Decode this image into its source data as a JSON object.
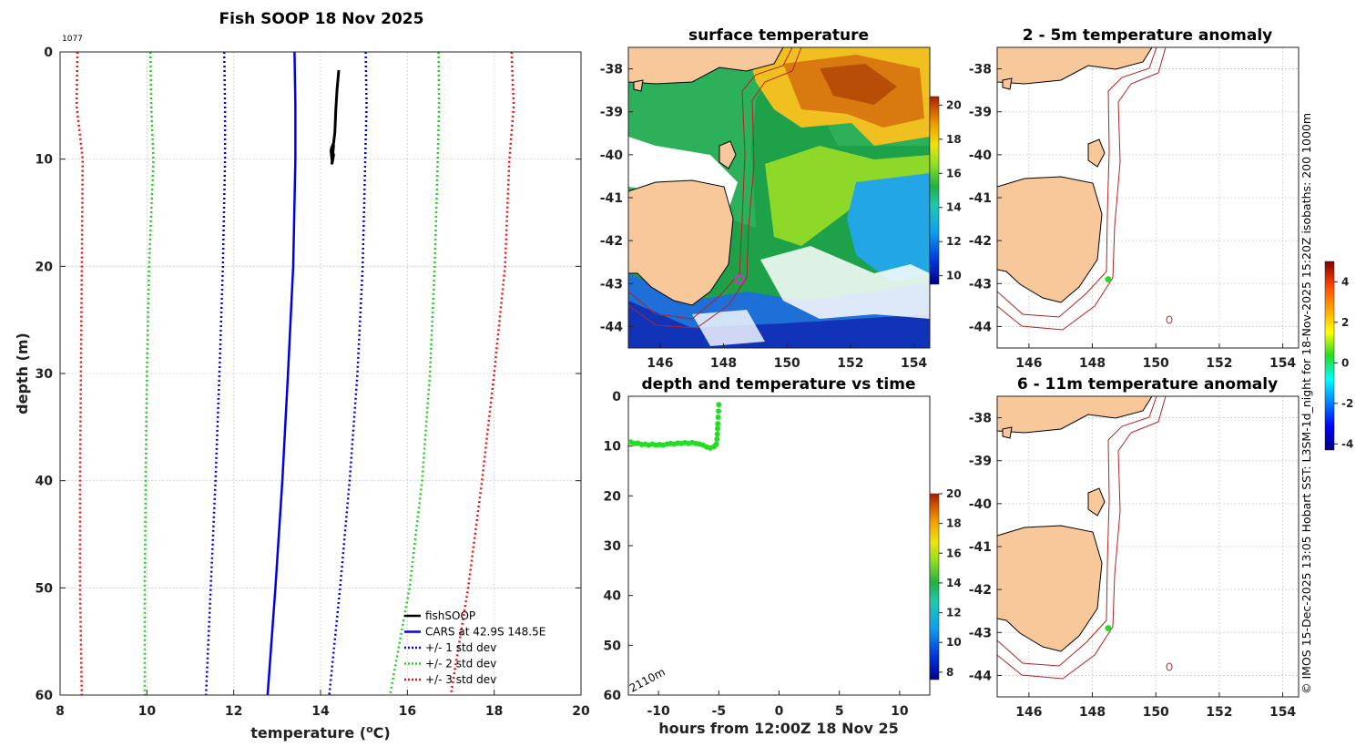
{
  "chart_data": [
    {
      "type": "line",
      "title": "Fish SOOP 18 Nov 2025",
      "corner_label": "1077",
      "xlabel": "temperature (",
      "xlabel_sup": "o",
      "xlabel_unit": "C)",
      "ylabel": "depth (m)",
      "xlim": [
        8,
        20
      ],
      "ylim": [
        0,
        60
      ],
      "xticks": [
        "8",
        "10",
        "12",
        "14",
        "16",
        "18",
        "20"
      ],
      "yticks": [
        "0",
        "10",
        "20",
        "30",
        "40",
        "50",
        "60"
      ],
      "depth": [
        0,
        5,
        10,
        20,
        30,
        40,
        50,
        60
      ],
      "series": [
        {
          "name": "fishSOOP",
          "color": "#000000",
          "style": "solid",
          "width": 3,
          "points": [
            [
              14.42,
              1.7
            ],
            [
              14.38,
              3.5
            ],
            [
              14.35,
              5.5
            ],
            [
              14.33,
              7.5
            ],
            [
              14.3,
              8.5
            ],
            [
              14.25,
              9.0
            ],
            [
              14.3,
              9.6
            ],
            [
              14.27,
              10.3
            ],
            [
              14.24,
              9.2
            ],
            [
              14.3,
              8.7
            ],
            [
              14.26,
              10.5
            ]
          ]
        },
        {
          "name": "CARS at 42.9S 148.5E",
          "color": "#0000e6",
          "style": "solid",
          "width": 2.5,
          "x": [
            13.4,
            13.42,
            13.42,
            13.37,
            13.25,
            13.12,
            12.96,
            12.78
          ]
        },
        {
          "name": "+/- 1 std dev",
          "color": "#0000e6",
          "style": "dotted",
          "width": 2.5,
          "x": [
            11.78,
            11.8,
            11.8,
            11.75,
            11.67,
            11.58,
            11.47,
            11.36
          ],
          "x2": [
            15.04,
            15.06,
            15.03,
            14.97,
            14.85,
            14.67,
            14.45,
            14.2
          ]
        },
        {
          "name": "+/- 2 std dev",
          "color": "#22cc22",
          "style": "dotted",
          "width": 2.5,
          "x": [
            10.08,
            10.1,
            10.15,
            10.05,
            10.0,
            9.97,
            9.95,
            9.95
          ],
          "x2": [
            16.72,
            16.73,
            16.7,
            16.63,
            16.52,
            16.34,
            16.05,
            15.6
          ]
        },
        {
          "name": "+/- 3 std dev",
          "color": "#ee1111",
          "style": "dotted",
          "width": 2.5,
          "x": [
            8.4,
            8.38,
            8.52,
            8.5,
            8.48,
            8.46,
            8.46,
            8.5
          ],
          "x2": [
            18.4,
            18.45,
            18.35,
            18.25,
            18.0,
            17.72,
            17.4,
            17.0
          ]
        }
      ]
    },
    {
      "type": "heatmap",
      "title": "surface temperature",
      "xlim": [
        145,
        154.5
      ],
      "ylim": [
        -44.5,
        -37.5
      ],
      "xticks": [
        "146",
        "148",
        "150",
        "152",
        "154"
      ],
      "yticks": [
        "-38",
        "-39",
        "-40",
        "-41",
        "-42",
        "-43",
        "-44"
      ],
      "colorbar": {
        "range": [
          9.5,
          20.5
        ],
        "ticks": [
          "10",
          "12",
          "14",
          "16",
          "18",
          "20"
        ]
      },
      "marker": {
        "lon": 148.5,
        "lat": -42.9,
        "color": "#cc33cc"
      }
    },
    {
      "type": "scatter",
      "title": "depth and temperature vs time",
      "xlabel": "hours from 12:00Z 18 Nov 25",
      "xlim": [
        -12.5,
        12.5
      ],
      "ylim": [
        0,
        60
      ],
      "xticks": [
        "-10",
        "-5",
        "0",
        "5",
        "10"
      ],
      "yticks": [
        "0",
        "10",
        "20",
        "30",
        "40",
        "50",
        "60"
      ],
      "annotation": "2110m",
      "colorbar": {
        "range": [
          7.5,
          20.0
        ],
        "ticks": [
          "8",
          "10",
          "12",
          "14",
          "16",
          "18",
          "20"
        ]
      },
      "point_color": "#22dd22",
      "points": [
        [
          -12.3,
          9.2
        ],
        [
          -12.0,
          9.5
        ],
        [
          -11.7,
          9.4
        ],
        [
          -11.4,
          9.7
        ],
        [
          -11.1,
          9.6
        ],
        [
          -10.8,
          9.8
        ],
        [
          -10.5,
          9.6
        ],
        [
          -10.2,
          9.8
        ],
        [
          -9.9,
          9.7
        ],
        [
          -9.6,
          9.8
        ],
        [
          -9.3,
          9.6
        ],
        [
          -9.0,
          9.5
        ],
        [
          -8.7,
          9.6
        ],
        [
          -8.4,
          9.4
        ],
        [
          -8.1,
          9.5
        ],
        [
          -7.8,
          9.3
        ],
        [
          -7.5,
          9.5
        ],
        [
          -7.2,
          9.3
        ],
        [
          -6.9,
          9.5
        ],
        [
          -6.6,
          9.6
        ],
        [
          -6.3,
          9.8
        ],
        [
          -6.0,
          10.2
        ],
        [
          -5.7,
          10.4
        ],
        [
          -5.4,
          10.1
        ],
        [
          -5.2,
          9.6
        ],
        [
          -5.15,
          8.6
        ],
        [
          -5.12,
          7.6
        ],
        [
          -5.1,
          6.5
        ],
        [
          -5.08,
          5.5
        ],
        [
          -5.05,
          4.2
        ],
        [
          -5.02,
          3.0
        ],
        [
          -5.0,
          1.7
        ]
      ]
    },
    {
      "type": "heatmap",
      "title": "2 - 5m temperature anomaly",
      "xlim": [
        145,
        154.5
      ],
      "ylim": [
        -44.5,
        -37.5
      ],
      "xticks": [
        "146",
        "148",
        "150",
        "152",
        "154"
      ],
      "yticks": [
        "-38",
        "-39",
        "-40",
        "-41",
        "-42",
        "-43",
        "-44"
      ],
      "marker": {
        "lon": 148.5,
        "lat": -42.9,
        "color": "#22dd22"
      }
    },
    {
      "type": "heatmap",
      "title": "6 - 11m temperature anomaly",
      "xlim": [
        145,
        154.5
      ],
      "ylim": [
        -44.5,
        -37.5
      ],
      "xticks": [
        "146",
        "148",
        "150",
        "152",
        "154"
      ],
      "yticks": [
        "-38",
        "-39",
        "-40",
        "-41",
        "-42",
        "-43",
        "-44"
      ],
      "marker": {
        "lon": 148.5,
        "lat": -42.9,
        "color": "#22dd22"
      }
    }
  ],
  "anomaly_colorbar": {
    "range": [
      -4.3,
      5.0
    ],
    "ticks": [
      "4",
      "2",
      "0",
      "-2",
      "-4"
    ]
  },
  "side_caption": "© IMOS 15-Dec-2025 13:05 Hobart SST: L3SM-1d_night for 18-Nov-2025 15:20Z isobaths: 200  1000m",
  "colors": {
    "land": "#f8c89a",
    "isobath": "#b22222",
    "grid": "#cccccc"
  }
}
